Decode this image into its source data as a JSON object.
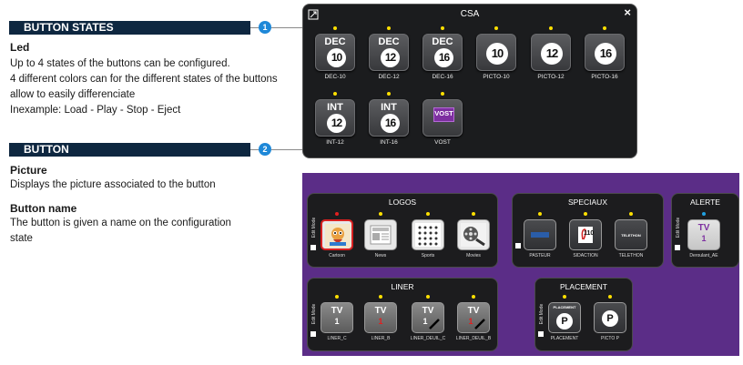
{
  "doc": {
    "section1_title": "BUTTON STATES",
    "section1_number": "1",
    "led_heading": "Led",
    "led_lines": [
      "Up to 4 states of the buttons can be configured.",
      "4 different colors can for the different states of the buttons",
      "allow to easily differenciate",
      "Inexample: Load - Play - Stop - Eject"
    ],
    "section2_title": "BUTTON",
    "section2_number": "2",
    "picture_heading": "Picture",
    "picture_text": "Displays the picture associated to the button",
    "name_heading": "Button name",
    "name_lines": [
      "The button is given a name on the configuration",
      "state"
    ]
  },
  "csa_window": {
    "title": "CSA",
    "close_icon": "×",
    "tiles": [
      {
        "label": "DEC",
        "num": "10",
        "caption": "DEC-10",
        "led_color": "#ffe000"
      },
      {
        "label": "DEC",
        "num": "12",
        "caption": "DEC-12",
        "led_color": "#ffe000"
      },
      {
        "label": "DEC",
        "num": "16",
        "caption": "DEC-16",
        "led_color": "#ffe000"
      },
      {
        "label": "",
        "num": "10",
        "caption": "PICTO-10",
        "led_color": "#ffe000"
      },
      {
        "label": "",
        "num": "12",
        "caption": "PICTO-12",
        "led_color": "#ffe000"
      },
      {
        "label": "",
        "num": "16",
        "caption": "PICTO-16",
        "led_color": "#ffe000"
      },
      {
        "label": "INT",
        "num": "12",
        "caption": "INT-12",
        "led_color": "#ffe000"
      },
      {
        "label": "INT",
        "num": "16",
        "caption": "INT-16",
        "led_color": "#ffe000"
      },
      {
        "label": "VOST",
        "num": "",
        "caption": "VOST",
        "led_color": "#ffe000"
      }
    ]
  },
  "panels": {
    "edit_mode_label": "Edit Mode",
    "logos": {
      "title": "LOGOS",
      "tiles": [
        {
          "caption": "Cartoon",
          "icon": "cartoon-logo-icon",
          "led_color": "#e02020",
          "selected": true
        },
        {
          "caption": "News",
          "icon": "news-logo-icon",
          "led_color": "#ffe000"
        },
        {
          "caption": "Sports",
          "icon": "sports-logo-icon",
          "led_color": "#ffe000"
        },
        {
          "caption": "Movies",
          "icon": "movies-logo-icon",
          "led_color": "#ffe000"
        }
      ]
    },
    "speciaux": {
      "title": "SPECIAUX",
      "tiles": [
        {
          "caption": "PASTEUR",
          "icon": "pasteur-logo-icon",
          "led_color": "#ffe000"
        },
        {
          "caption": "SIDACTION",
          "icon": "sidaction-logo-icon",
          "inner": "110",
          "led_color": "#ffe000"
        },
        {
          "caption": "TELETHON",
          "icon": "telethon-logo-icon",
          "inner": "TELETHON",
          "led_color": "#ffe000"
        }
      ]
    },
    "alerte": {
      "title": "ALERTE",
      "tiles": [
        {
          "caption": "Deroulant_AE",
          "tv": "TV",
          "num": "1",
          "led_color": "#20a0e0"
        }
      ]
    },
    "liner": {
      "title": "LINER",
      "tiles": [
        {
          "caption": "LINER_C",
          "tv": "TV",
          "num": "1",
          "num_color": "#ffffff",
          "led_color": "#ffe000"
        },
        {
          "caption": "LINER_B",
          "tv": "TV",
          "num": "1",
          "num_color": "#e02020",
          "led_color": "#ffe000"
        },
        {
          "caption": "LINER_DEUIL_C",
          "tv": "TV",
          "num": "1",
          "num_color": "#ffffff",
          "led_color": "#ffe000",
          "ribbon": true
        },
        {
          "caption": "LINER_DEUIL_B",
          "tv": "TV",
          "num": "1",
          "num_color": "#e02020",
          "led_color": "#ffe000",
          "ribbon": true
        }
      ]
    },
    "placement": {
      "title": "PLACEMENT",
      "tiles": [
        {
          "caption": "PLACEMENT",
          "top": "PLACEMENT",
          "letter": "P",
          "led_color": "#ffe000"
        },
        {
          "caption": "PICTO P",
          "top": "",
          "letter": "P",
          "led_color": "#ffe000"
        }
      ]
    }
  }
}
